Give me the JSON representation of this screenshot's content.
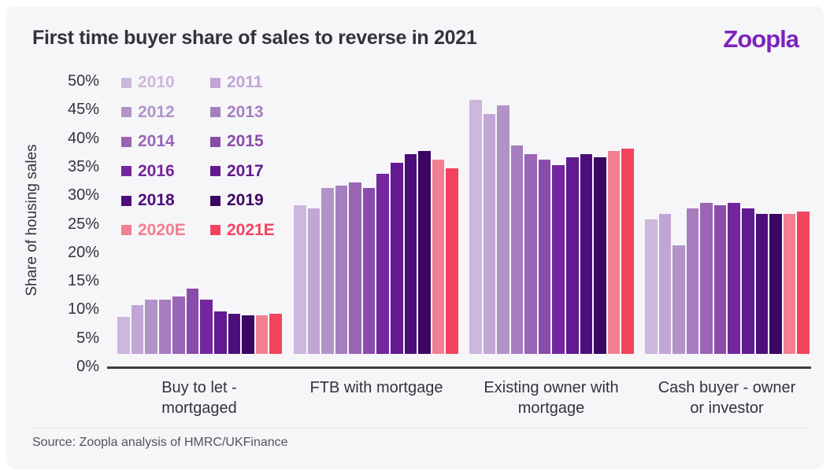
{
  "page": {
    "title": "First time buyer share of sales to reverse in 2021",
    "brand": "Zoopla",
    "source": "Source: Zoopla analysis of HMRC/UKFinance"
  },
  "colors": {
    "brand_purple": "#7d23be",
    "title_text": "#33323e",
    "axis_text": "#33323e",
    "axis_line": "#3c3c43",
    "source_text": "#52525c",
    "card_bg": "#f6f6f8",
    "divider": "#e2e2e8"
  },
  "chart_data": {
    "type": "bar",
    "title": "First time buyer share of sales to reverse in 2021",
    "xlabel": "",
    "ylabel": "Share of housing sales",
    "ylim": [
      0,
      50
    ],
    "ytick_step": 5,
    "ytick_labels": [
      "50%",
      "45%",
      "40%",
      "35%",
      "30%",
      "25%",
      "20%",
      "15%",
      "10%",
      "5%",
      "0%"
    ],
    "grid": false,
    "legend_position": "upper-left",
    "value_unit": "% share of housing sales",
    "categories": [
      {
        "id": "buy-to-let-mortgaged",
        "label": "Buy to let -\nmortgaged"
      },
      {
        "id": "ftb-with-mortgage",
        "label": "FTB with mortgage"
      },
      {
        "id": "existing-owner-with-mortgage",
        "label": "Existing owner with\nmortgage"
      },
      {
        "id": "cash-buyer-owner-or-investor",
        "label": "Cash buyer - owner\nor investor"
      }
    ],
    "series": [
      {
        "name": "2010",
        "color": "#cdb7dc",
        "values": [
          6.5,
          26,
          44.5,
          23.5
        ]
      },
      {
        "name": "2011",
        "color": "#c1a6d4",
        "values": [
          8.5,
          25.5,
          42,
          24.5
        ]
      },
      {
        "name": "2012",
        "color": "#b293c9",
        "values": [
          9.5,
          29,
          43.5,
          19
        ]
      },
      {
        "name": "2013",
        "color": "#a67ec0",
        "values": [
          9.5,
          29.5,
          36.5,
          25.5
        ]
      },
      {
        "name": "2014",
        "color": "#9965b4",
        "values": [
          10,
          30,
          35,
          26.5
        ]
      },
      {
        "name": "2015",
        "color": "#8a4caa",
        "values": [
          11.5,
          29,
          34,
          26
        ]
      },
      {
        "name": "2016",
        "color": "#73269d",
        "values": [
          9.5,
          31.5,
          33,
          26.5
        ]
      },
      {
        "name": "2017",
        "color": "#611a90",
        "values": [
          7.5,
          33.5,
          34.5,
          25.5
        ]
      },
      {
        "name": "2018",
        "color": "#4d0e7a",
        "values": [
          7,
          35,
          35,
          24.5
        ]
      },
      {
        "name": "2019",
        "color": "#3b0562",
        "values": [
          6.8,
          35.5,
          34.5,
          24.5
        ]
      },
      {
        "name": "2020E",
        "color": "#f27e91",
        "values": [
          6.8,
          34,
          35.5,
          24.5
        ]
      },
      {
        "name": "2021E",
        "color": "#f4435f",
        "values": [
          7,
          32.5,
          36,
          25
        ]
      }
    ],
    "source": "Source: Zoopla analysis of HMRC/UKFinance"
  }
}
